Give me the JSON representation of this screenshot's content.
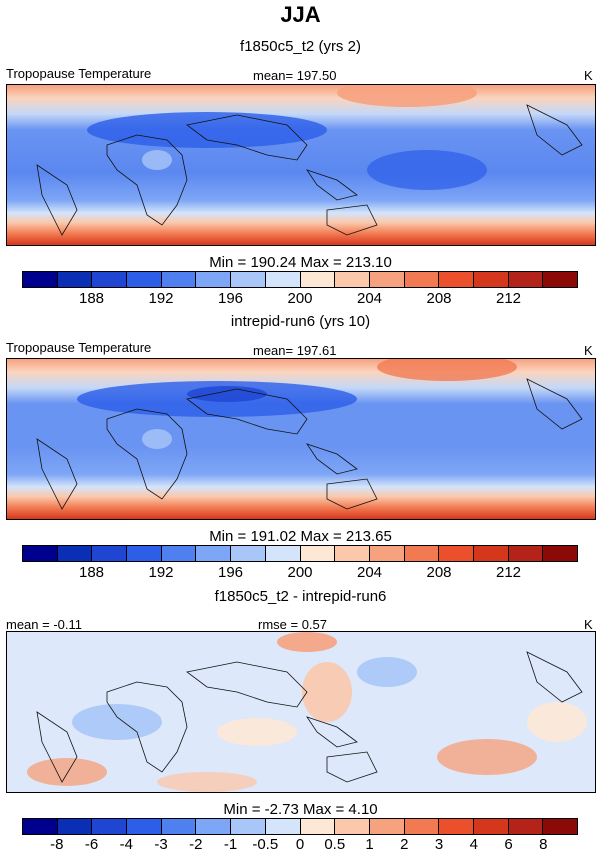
{
  "title": "JJA",
  "panels": [
    {
      "subtitle": "f1850c5_t2 (yrs 2)",
      "left_label": "Tropopause Temperature",
      "center_label": "mean= 197.50",
      "units": "K",
      "minmax": "Min = 190.24 Max = 213.10",
      "colorbar": {
        "colors": [
          "#00008f",
          "#0a2fb5",
          "#1e46d2",
          "#2c5ee8",
          "#4e80f0",
          "#7ea6f6",
          "#a8c6f8",
          "#d4e4fa",
          "#fde8d6",
          "#fbc8ac",
          "#f6a27f",
          "#f27a52",
          "#ec4f2c",
          "#d5371c",
          "#b3231a",
          "#8b0a07"
        ],
        "ticks": [
          "188",
          "192",
          "196",
          "200",
          "204",
          "208",
          "212"
        ]
      }
    },
    {
      "subtitle": "intrepid-run6 (yrs 10)",
      "left_label": "Tropopause Temperature",
      "center_label": "mean= 197.61",
      "units": "K",
      "minmax": "Min = 191.02 Max = 213.65",
      "colorbar": {
        "colors": [
          "#00008f",
          "#0a2fb5",
          "#1e46d2",
          "#2c5ee8",
          "#4e80f0",
          "#7ea6f6",
          "#a8c6f8",
          "#d4e4fa",
          "#fde8d6",
          "#fbc8ac",
          "#f6a27f",
          "#f27a52",
          "#ec4f2c",
          "#d5371c",
          "#b3231a",
          "#8b0a07"
        ],
        "ticks": [
          "188",
          "192",
          "196",
          "200",
          "204",
          "208",
          "212"
        ]
      }
    },
    {
      "subtitle": "f1850c5_t2 - intrepid-run6",
      "left_label": "mean =  -0.11",
      "center_label": "rmse =   0.57",
      "units": "K",
      "minmax": "Min =  -2.73 Max =   4.10",
      "colorbar": {
        "colors": [
          "#00008f",
          "#0a2fb5",
          "#1e46d2",
          "#2c5ee8",
          "#4e80f0",
          "#7ea6f6",
          "#a8c6f8",
          "#d4e4fa",
          "#fde8d6",
          "#fbc8ac",
          "#f6a27f",
          "#f27a52",
          "#ec4f2c",
          "#d5371c",
          "#b3231a",
          "#8b0a07"
        ],
        "ticks": [
          "-8",
          "-6",
          "-4",
          "-3",
          "-2",
          "-1",
          "-0.5",
          "0",
          "0.5",
          "1",
          "2",
          "3",
          "4",
          "6",
          "8"
        ]
      }
    }
  ]
}
